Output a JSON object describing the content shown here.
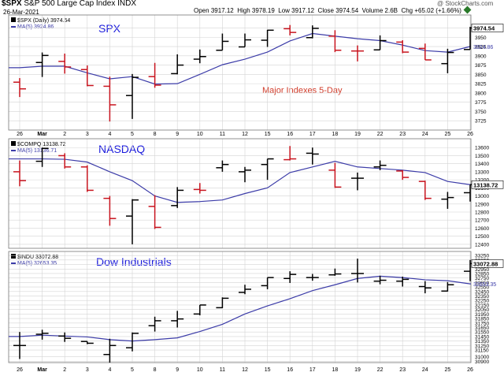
{
  "header": {
    "symbol": "$SPX",
    "index_name": "S&P 500 Large Cap Index",
    "exchange": "INDX",
    "date": "26-Mar-2021",
    "open_label": "Open",
    "open": "3917.12",
    "high_label": "High",
    "high": "3978.19",
    "low_label": "Low",
    "low": "3917.12",
    "close_label": "Close",
    "close": "3974.54",
    "volume_label": "Volume",
    "volume": "2.6B",
    "chg_label": "Chg",
    "chg": "+65.02 (+1.66%)",
    "watermark": "@ StockCharts.com"
  },
  "colors": {
    "up": "#000000",
    "down": "#c8141e",
    "ma": "#3c3ca8",
    "grid": "#d4d4d4",
    "label_blue": "#1a1adc",
    "note_red": "#d23c2a"
  },
  "chart_data": [
    {
      "type": "ohlc",
      "panel_label": "SPX",
      "note": "Major Indexes 5-Day",
      "legend_price": "$SPX (Daily) 3974.54",
      "legend_ma": "MA(5) 3924.86",
      "last_label": "3974.54",
      "ma_label": "3924.86",
      "ylim": [
        3700,
        4010
      ],
      "yticks": [
        3725,
        3750,
        3775,
        3800,
        3825,
        3850,
        3875,
        3900,
        3925,
        3950,
        3975
      ],
      "bars": [
        {
          "o": 3829,
          "h": 3840,
          "l": 3789,
          "c": 3811,
          "dir": "down"
        },
        {
          "o": 3882,
          "h": 3909,
          "l": 3843,
          "c": 3901,
          "dir": "up"
        },
        {
          "o": 3885,
          "h": 3906,
          "l": 3852,
          "c": 3870,
          "dir": "down"
        },
        {
          "o": 3863,
          "h": 3874,
          "l": 3818,
          "c": 3820,
          "dir": "down"
        },
        {
          "o": 3818,
          "h": 3844,
          "l": 3723,
          "c": 3768,
          "dir": "down"
        },
        {
          "o": 3793,
          "h": 3851,
          "l": 3730,
          "c": 3842,
          "dir": "up"
        },
        {
          "o": 3844,
          "h": 3881,
          "l": 3814,
          "c": 3821,
          "dir": "down"
        },
        {
          "o": 3852,
          "h": 3904,
          "l": 3850,
          "c": 3875,
          "dir": "up"
        },
        {
          "o": 3891,
          "h": 3917,
          "l": 3880,
          "c": 3898,
          "dir": "up"
        },
        {
          "o": 3915,
          "h": 3960,
          "l": 3915,
          "c": 3939,
          "dir": "up"
        },
        {
          "o": 3924,
          "h": 3960,
          "l": 3924,
          "c": 3943,
          "dir": "up"
        },
        {
          "o": 3942,
          "h": 3970,
          "l": 3924,
          "c": 3969,
          "dir": "up"
        },
        {
          "o": 3973,
          "h": 3983,
          "l": 3955,
          "c": 3963,
          "dir": "down"
        },
        {
          "o": 3949,
          "h": 3982,
          "l": 3947,
          "c": 3974,
          "dir": "up"
        },
        {
          "o": 3953,
          "h": 3969,
          "l": 3910,
          "c": 3915,
          "dir": "down"
        },
        {
          "o": 3913,
          "h": 3928,
          "l": 3885,
          "c": 3913,
          "dir": "down"
        },
        {
          "o": 3916,
          "h": 3955,
          "l": 3916,
          "c": 3941,
          "dir": "up"
        },
        {
          "o": 3937,
          "h": 3942,
          "l": 3907,
          "c": 3910,
          "dir": "down"
        },
        {
          "o": 3920,
          "h": 3933,
          "l": 3889,
          "c": 3889,
          "dir": "down"
        },
        {
          "o": 3879,
          "h": 3919,
          "l": 3853,
          "c": 3909,
          "dir": "up"
        },
        {
          "o": 3917,
          "h": 3978,
          "l": 3917,
          "c": 3975,
          "dir": "up"
        }
      ],
      "ma": [
        3868,
        3872,
        3872,
        3854,
        3838,
        3844,
        3824,
        3825,
        3850,
        3876,
        3891,
        3910,
        3940,
        3960,
        3953,
        3946,
        3941,
        3929,
        3914,
        3910,
        3925
      ]
    },
    {
      "type": "ohlc",
      "panel_label": "NASDAQ",
      "legend_price": "$COMPQ 13138.72",
      "legend_ma": "MA(5) 13136.71",
      "last_label": "13138.72",
      "ma_label": "",
      "ylim": [
        12350,
        13710
      ],
      "yticks": [
        12400,
        12500,
        12600,
        12700,
        12800,
        12900,
        13000,
        13100,
        13200,
        13300,
        13400,
        13500,
        13600
      ],
      "bars": [
        {
          "o": 13300,
          "h": 13440,
          "l": 13120,
          "c": 13190,
          "dir": "down"
        },
        {
          "o": 13430,
          "h": 13600,
          "l": 13360,
          "c": 13590,
          "dir": "up"
        },
        {
          "o": 13500,
          "h": 13530,
          "l": 13340,
          "c": 13360,
          "dir": "down"
        },
        {
          "o": 13360,
          "h": 13380,
          "l": 13050,
          "c": 13070,
          "dir": "down"
        },
        {
          "o": 12970,
          "h": 13000,
          "l": 12630,
          "c": 12720,
          "dir": "down"
        },
        {
          "o": 12750,
          "h": 12960,
          "l": 12400,
          "c": 12950,
          "dir": "up"
        },
        {
          "o": 12870,
          "h": 13010,
          "l": 12590,
          "c": 12610,
          "dir": "down"
        },
        {
          "o": 12880,
          "h": 13110,
          "l": 12850,
          "c": 13070,
          "dir": "up"
        },
        {
          "o": 13080,
          "h": 13160,
          "l": 13030,
          "c": 13070,
          "dir": "down"
        },
        {
          "o": 13350,
          "h": 13440,
          "l": 13300,
          "c": 13390,
          "dir": "up"
        },
        {
          "o": 13300,
          "h": 13360,
          "l": 13170,
          "c": 13320,
          "dir": "up"
        },
        {
          "o": 13390,
          "h": 13460,
          "l": 13200,
          "c": 13460,
          "dir": "up"
        },
        {
          "o": 13450,
          "h": 13620,
          "l": 13440,
          "c": 13460,
          "dir": "down"
        },
        {
          "o": 13530,
          "h": 13600,
          "l": 13390,
          "c": 13520,
          "dir": "up"
        },
        {
          "o": 13320,
          "h": 13410,
          "l": 13100,
          "c": 13110,
          "dir": "down"
        },
        {
          "o": 13220,
          "h": 13290,
          "l": 13070,
          "c": 13220,
          "dir": "up"
        },
        {
          "o": 13360,
          "h": 13440,
          "l": 13320,
          "c": 13380,
          "dir": "up"
        },
        {
          "o": 13310,
          "h": 13320,
          "l": 13200,
          "c": 13230,
          "dir": "down"
        },
        {
          "o": 13180,
          "h": 13190,
          "l": 12950,
          "c": 12970,
          "dir": "down"
        },
        {
          "o": 12960,
          "h": 13050,
          "l": 12840,
          "c": 12980,
          "dir": "up"
        },
        {
          "o": 13040,
          "h": 13140,
          "l": 12930,
          "c": 13140,
          "dir": "up"
        }
      ],
      "ma": [
        13460,
        13460,
        13455,
        13420,
        13300,
        13190,
        13000,
        12920,
        12930,
        12950,
        13030,
        13100,
        13290,
        13360,
        13430,
        13360,
        13340,
        13320,
        13290,
        13180,
        13140
      ]
    },
    {
      "type": "ohlc",
      "panel_label": "Dow Industrials",
      "legend_price": "$INDU 33072.88",
      "legend_ma": "MA(5) 32653.35",
      "last_label": "33072.88",
      "ma_label": "32653.35",
      "ylim": [
        30870,
        33340
      ],
      "yticks": [
        30900,
        31000,
        31150,
        31250,
        31350,
        31450,
        31550,
        31650,
        31750,
        31850,
        31950,
        32050,
        32150,
        32250,
        32350,
        32450,
        32550,
        32650,
        32750,
        32850,
        32950,
        33050,
        33150,
        33250
      ],
      "bars": [
        {
          "o": 31250,
          "h": 31550,
          "l": 30950,
          "c": 31250,
          "dir": "up"
        },
        {
          "o": 31500,
          "h": 31600,
          "l": 31380,
          "c": 31520,
          "dir": "up"
        },
        {
          "o": 31460,
          "h": 31540,
          "l": 31330,
          "c": 31410,
          "dir": "up"
        },
        {
          "o": 31340,
          "h": 31340,
          "l": 31280,
          "c": 31300,
          "dir": "up"
        },
        {
          "o": 31050,
          "h": 31400,
          "l": 30870,
          "c": 31250,
          "dir": "up"
        },
        {
          "o": 31200,
          "h": 31540,
          "l": 31120,
          "c": 31520,
          "dir": "up"
        },
        {
          "o": 31690,
          "h": 31890,
          "l": 31560,
          "c": 31800,
          "dir": "up"
        },
        {
          "o": 31800,
          "h": 32020,
          "l": 31650,
          "c": 31840,
          "dir": "up"
        },
        {
          "o": 31950,
          "h": 32150,
          "l": 31920,
          "c": 32150,
          "dir": "up"
        },
        {
          "o": 32090,
          "h": 32320,
          "l": 32080,
          "c": 32300,
          "dir": "up"
        },
        {
          "o": 32430,
          "h": 32600,
          "l": 32390,
          "c": 32500,
          "dir": "up"
        },
        {
          "o": 32580,
          "h": 32760,
          "l": 32500,
          "c": 32760,
          "dir": "up"
        },
        {
          "o": 32740,
          "h": 32900,
          "l": 32640,
          "c": 32830,
          "dir": "up"
        },
        {
          "o": 32760,
          "h": 32840,
          "l": 32690,
          "c": 32760,
          "dir": "up"
        },
        {
          "o": 32820,
          "h": 32960,
          "l": 32800,
          "c": 32840,
          "dir": "up"
        },
        {
          "o": 32850,
          "h": 33180,
          "l": 32650,
          "c": 32850,
          "dir": "up"
        },
        {
          "o": 32680,
          "h": 32800,
          "l": 32610,
          "c": 32700,
          "dir": "up"
        },
        {
          "o": 32680,
          "h": 32780,
          "l": 32560,
          "c": 32720,
          "dir": "up"
        },
        {
          "o": 32560,
          "h": 32680,
          "l": 32410,
          "c": 32530,
          "dir": "up"
        },
        {
          "o": 32460,
          "h": 32660,
          "l": 32450,
          "c": 32600,
          "dir": "up"
        },
        {
          "o": 32900,
          "h": 33150,
          "l": 32680,
          "c": 33070,
          "dir": "up"
        }
      ],
      "ma": [
        31450,
        31480,
        31460,
        31440,
        31380,
        31350,
        31380,
        31420,
        31560,
        31720,
        31950,
        32130,
        32290,
        32470,
        32600,
        32740,
        32790,
        32760,
        32710,
        32690,
        32620
      ]
    }
  ],
  "x_labels": [
    "26",
    "Mar",
    "2",
    "3",
    "4",
    "5",
    "8",
    "9",
    "10",
    "11",
    "12",
    "15",
    "16",
    "17",
    "18",
    "19",
    "22",
    "23",
    "24",
    "25",
    "26"
  ]
}
